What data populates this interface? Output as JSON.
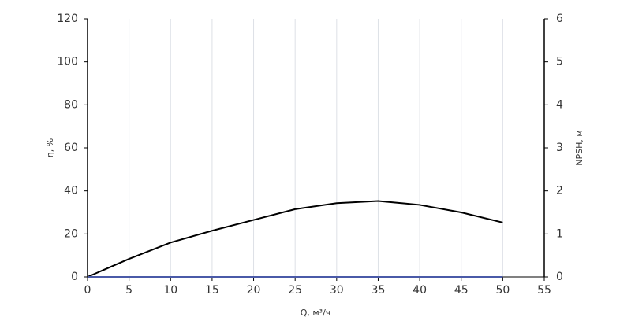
{
  "chart_data": {
    "type": "line",
    "x_label": "Q, м³/ч",
    "y_label": "η, %",
    "y2_label": "NPSH, м",
    "x": [
      0,
      5,
      10,
      15,
      20,
      25,
      30,
      35,
      40,
      45,
      50
    ],
    "series": [
      {
        "color": "#000000",
        "axis": "y",
        "values": [
          0,
          8.4,
          16,
          21.5,
          26.5,
          31.5,
          34.3,
          35.3,
          33.5,
          30,
          25.3
        ]
      },
      {
        "color": "#4a5aa8",
        "axis": "y2",
        "values": [
          0,
          0,
          0,
          0,
          0,
          0,
          0,
          0,
          0,
          0,
          0
        ]
      }
    ],
    "xlim": [
      0,
      55
    ],
    "xticks": [
      0,
      5,
      10,
      15,
      20,
      25,
      30,
      35,
      40,
      45,
      50,
      55
    ],
    "ylim": [
      0,
      120
    ],
    "yticks": [
      0,
      20,
      40,
      60,
      80,
      100,
      120
    ],
    "y2lim": [
      0,
      6
    ],
    "y2ticks": [
      0,
      1,
      2,
      3,
      4,
      5,
      6
    ],
    "grid": "x"
  }
}
